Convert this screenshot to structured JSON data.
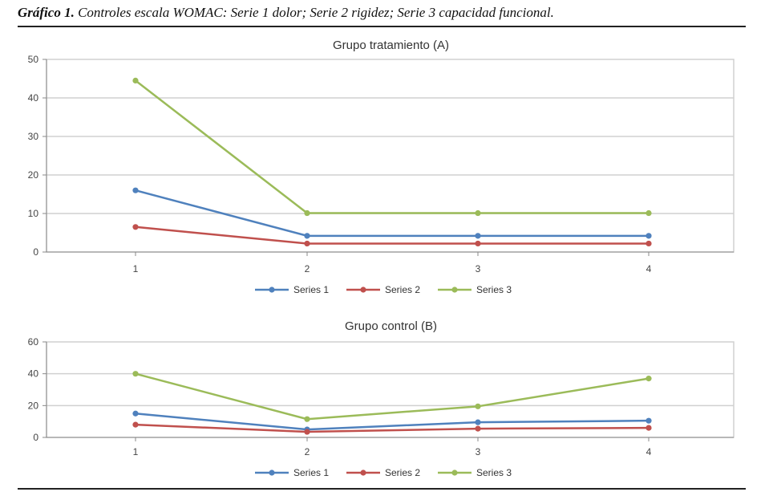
{
  "caption": {
    "label": "Gráfico 1.",
    "text": "Controles escala WOMAC: Serie 1 dolor; Serie 2 rigidez; Serie 3 capacidad funcional."
  },
  "colors": {
    "series_1": "#4f81bd",
    "series_2": "#c0504d",
    "series_3": "#9bbb59",
    "grid": "#d0d0d0",
    "axis": "#888888"
  },
  "chart_data": [
    {
      "type": "line",
      "title": "Grupo tratamiento (A)",
      "categories": [
        "1",
        "2",
        "3",
        "4"
      ],
      "ylim": [
        0,
        50
      ],
      "yticks": [
        0,
        10,
        20,
        30,
        40,
        50
      ],
      "grid": true,
      "legend_position": "bottom",
      "series": [
        {
          "name": "Series 1",
          "values": [
            16,
            4.2,
            4.2,
            4.2
          ]
        },
        {
          "name": "Series 2",
          "values": [
            6.5,
            2.2,
            2.2,
            2.2
          ]
        },
        {
          "name": "Series 3",
          "values": [
            44.5,
            10.1,
            10.1,
            10.1
          ]
        }
      ]
    },
    {
      "type": "line",
      "title": "Grupo control (B)",
      "categories": [
        "1",
        "2",
        "3",
        "4"
      ],
      "ylim": [
        0,
        60
      ],
      "yticks": [
        0,
        20,
        40,
        60
      ],
      "grid": true,
      "legend_position": "bottom",
      "series": [
        {
          "name": "Series 1",
          "values": [
            15,
            5,
            9.5,
            10.5
          ]
        },
        {
          "name": "Series 2",
          "values": [
            8,
            3.5,
            5.5,
            6
          ]
        },
        {
          "name": "Series 3",
          "values": [
            40,
            11.5,
            19.5,
            37
          ]
        }
      ]
    }
  ]
}
